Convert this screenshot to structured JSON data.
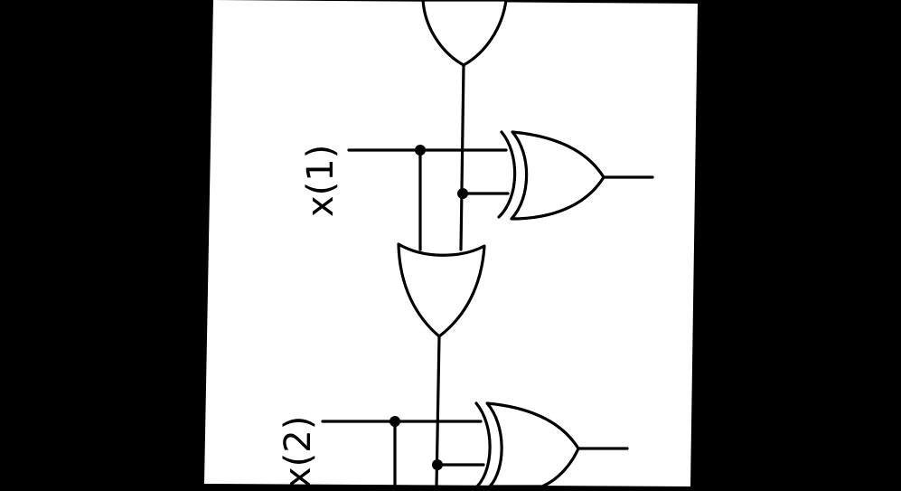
{
  "diagram": {
    "background_color": "#000000",
    "paper_color": "#ffffff",
    "ink_color": "#000000",
    "labels": {
      "input_1": "x(1)",
      "input_2": "x(2)"
    },
    "gates": [
      {
        "type": "OR"
      },
      {
        "type": "XOR"
      },
      {
        "type": "OR"
      },
      {
        "type": "XOR"
      }
    ]
  }
}
